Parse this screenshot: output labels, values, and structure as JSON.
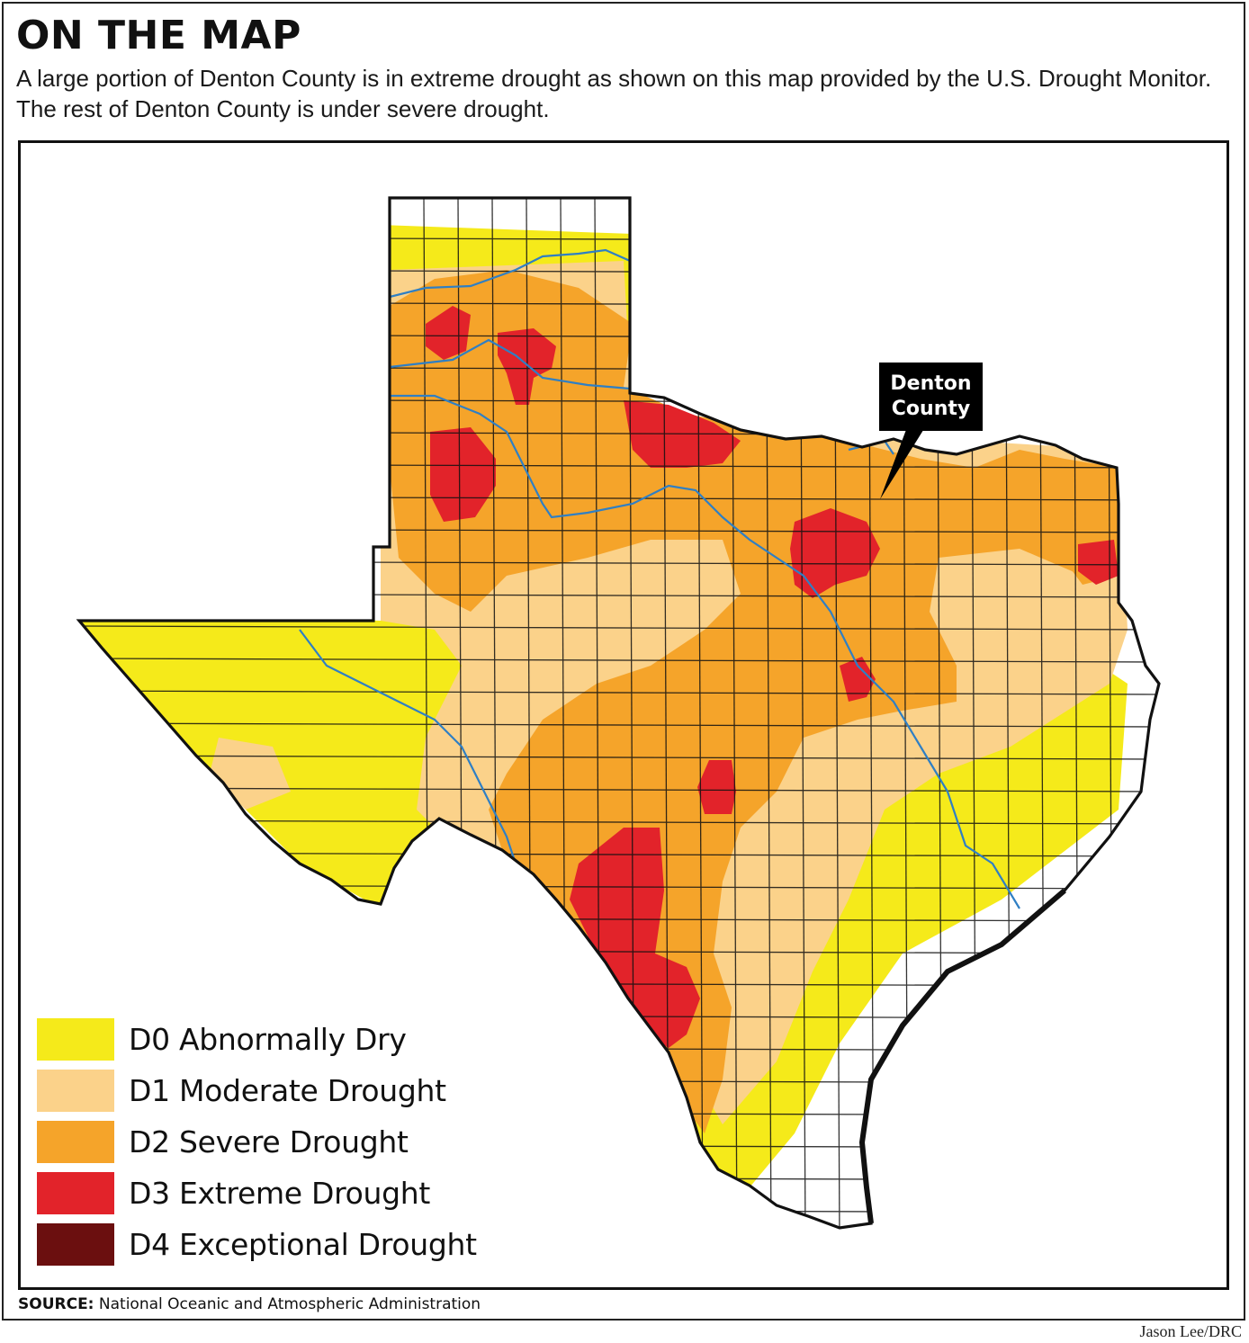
{
  "header": {
    "title": "ON THE MAP",
    "subtitle": "A large portion of Denton County is in extreme drought as shown on this map provided by the U.S. Drought Monitor. The rest of Denton County is under severe drought."
  },
  "callout": {
    "line1": "Denton",
    "line2": "County"
  },
  "legend": {
    "items": [
      {
        "label": "D0 Abnormally Dry",
        "color": "#f5ea1a"
      },
      {
        "label": "D1 Moderate Drought",
        "color": "#fbd28a"
      },
      {
        "label": "D2 Severe Drought",
        "color": "#f5a42a"
      },
      {
        "label": "D3 Extreme Drought",
        "color": "#e2232a"
      },
      {
        "label": "D4 Exceptional Drought",
        "color": "#6b0f0f"
      }
    ]
  },
  "footer": {
    "source_label": "SOURCE:",
    "source_text": "National Oceanic and Atmospheric Administration",
    "credit": "Jason Lee/DRC"
  },
  "colors": {
    "d0": "#f5ea1a",
    "d1": "#fbd28a",
    "d2": "#f5a42a",
    "d3": "#e2232a",
    "d4": "#6b0f0f",
    "river": "#2f7fc4",
    "border": "#111111"
  }
}
